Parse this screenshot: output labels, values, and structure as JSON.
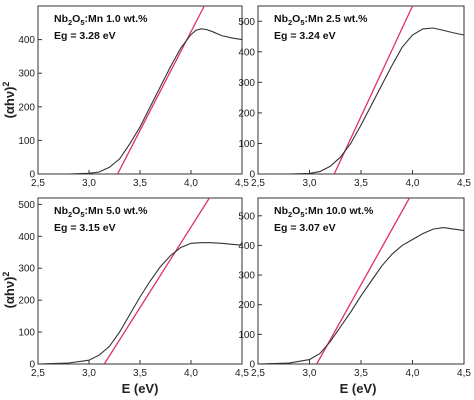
{
  "figure": {
    "y_label_base": "(αhν)",
    "y_label_exp": "2",
    "x_label": "E (eV)"
  },
  "chart_data": [
    {
      "type": "line",
      "sample": {
        "base": "Nb",
        "sub1": "2",
        "mid": "O",
        "sub2": "5",
        "tail": ":Mn 1.0 wt.%"
      },
      "eg_label": "Eg = 3.28 eV",
      "xlim": [
        2.5,
        4.5
      ],
      "ylim": [
        0,
        500
      ],
      "x_ticks": [
        "2,5",
        "3,0",
        "3,5",
        "4,0",
        "4,5"
      ],
      "y_ticks": [
        "0",
        "100",
        "200",
        "300",
        "400"
      ],
      "series": [
        {
          "x": [
            2.5,
            2.8,
            3.0,
            3.1,
            3.2,
            3.3,
            3.4,
            3.5,
            3.6,
            3.7,
            3.8,
            3.9,
            4.0,
            4.05,
            4.1,
            4.15,
            4.2,
            4.3,
            4.4,
            4.5
          ],
          "y": [
            0,
            0,
            2,
            6,
            20,
            45,
            90,
            140,
            200,
            260,
            320,
            375,
            415,
            428,
            432,
            430,
            425,
            412,
            405,
            400
          ]
        }
      ],
      "tangent": {
        "x": [
          3.28,
          4.13
        ],
        "y": [
          0,
          500
        ]
      },
      "colors": {
        "curve": "#333333",
        "tangent": "#e0306b"
      }
    },
    {
      "type": "line",
      "sample": {
        "base": "Nb",
        "sub1": "2",
        "mid": "O",
        "sub2": "5",
        "tail": ":Mn 2.5 wt.%"
      },
      "eg_label": "Eg = 3.24 eV",
      "xlim": [
        2.5,
        4.5
      ],
      "ylim": [
        0,
        550
      ],
      "x_ticks": [
        "2,5",
        "3,0",
        "3,5",
        "4,0",
        "4,5"
      ],
      "y_ticks": [
        "0",
        "100",
        "200",
        "300",
        "400",
        "500"
      ],
      "series": [
        {
          "x": [
            2.5,
            2.8,
            3.0,
            3.1,
            3.2,
            3.3,
            3.4,
            3.5,
            3.6,
            3.7,
            3.8,
            3.9,
            4.0,
            4.1,
            4.2,
            4.3,
            4.4,
            4.5
          ],
          "y": [
            0,
            0,
            2,
            8,
            25,
            55,
            100,
            160,
            225,
            290,
            355,
            415,
            455,
            475,
            478,
            470,
            462,
            455
          ]
        }
      ],
      "tangent": {
        "x": [
          3.24,
          4.0
        ],
        "y": [
          0,
          550
        ]
      },
      "colors": {
        "curve": "#333333",
        "tangent": "#e0306b"
      }
    },
    {
      "type": "line",
      "sample": {
        "base": "Nb",
        "sub1": "2",
        "mid": "O",
        "sub2": "5",
        "tail": ":Mn 5.0 wt.%"
      },
      "eg_label": "Eg = 3.15 eV",
      "xlim": [
        2.5,
        4.5
      ],
      "ylim": [
        0,
        520
      ],
      "x_ticks": [
        "2,5",
        "3,0",
        "3,5",
        "4,0",
        "4,5"
      ],
      "y_ticks": [
        "0",
        "100",
        "200",
        "300",
        "400",
        "500"
      ],
      "series": [
        {
          "x": [
            2.5,
            2.8,
            3.0,
            3.1,
            3.2,
            3.3,
            3.4,
            3.5,
            3.6,
            3.7,
            3.8,
            3.9,
            4.0,
            4.1,
            4.2,
            4.3,
            4.4,
            4.5
          ],
          "y": [
            0,
            3,
            12,
            28,
            55,
            100,
            155,
            210,
            260,
            305,
            340,
            365,
            378,
            380,
            380,
            378,
            375,
            372
          ]
        }
      ],
      "tangent": {
        "x": [
          3.15,
          4.18
        ],
        "y": [
          0,
          520
        ]
      },
      "colors": {
        "curve": "#333333",
        "tangent": "#e0306b"
      }
    },
    {
      "type": "line",
      "sample": {
        "base": "Nb",
        "sub1": "2",
        "mid": "O",
        "sub2": "5",
        "tail": ":Mn 10.0 wt.%"
      },
      "eg_label": "Eg = 3.07 eV",
      "xlim": [
        2.5,
        4.5
      ],
      "ylim": [
        0,
        560
      ],
      "x_ticks": [
        "2,5",
        "3,0",
        "3,5",
        "4,0",
        "4,5"
      ],
      "y_ticks": [
        "0",
        "100",
        "200",
        "300",
        "400",
        "500"
      ],
      "series": [
        {
          "x": [
            2.5,
            2.8,
            3.0,
            3.1,
            3.2,
            3.3,
            3.4,
            3.5,
            3.6,
            3.7,
            3.8,
            3.9,
            4.0,
            4.1,
            4.2,
            4.3,
            4.4,
            4.5
          ],
          "y": [
            0,
            3,
            15,
            35,
            75,
            125,
            175,
            230,
            280,
            330,
            370,
            400,
            420,
            440,
            455,
            460,
            455,
            450
          ]
        }
      ],
      "tangent": {
        "x": [
          3.07,
          3.97
        ],
        "y": [
          0,
          560
        ]
      },
      "colors": {
        "curve": "#333333",
        "tangent": "#e0306b"
      }
    }
  ]
}
